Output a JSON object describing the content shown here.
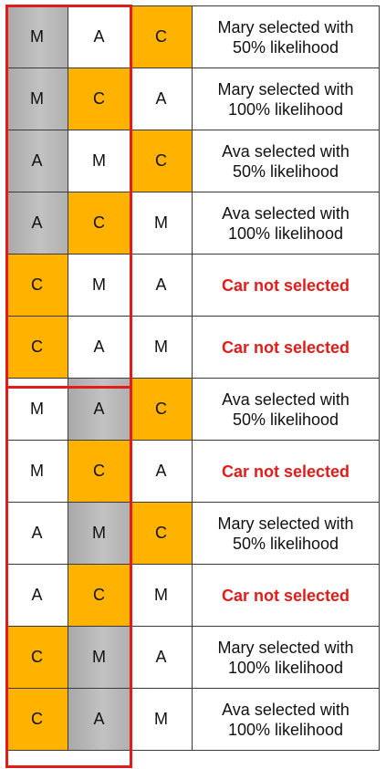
{
  "colors": {
    "grey": "#b3b3b3",
    "orange": "#ffb200",
    "white": "#ffffff",
    "highlight": "#e31b1b",
    "not_selected_text": "#e31b1b"
  },
  "rows": [
    {
      "cells": [
        {
          "t": "M",
          "c": "grey"
        },
        {
          "t": "A",
          "c": "white"
        },
        {
          "t": "C",
          "c": "orange"
        }
      ],
      "result": [
        "Mary selected with",
        "50% likelihood"
      ]
    },
    {
      "cells": [
        {
          "t": "M",
          "c": "grey"
        },
        {
          "t": "C",
          "c": "orange"
        },
        {
          "t": "A",
          "c": "white"
        }
      ],
      "result": [
        "Mary selected with",
        "100% likelihood"
      ]
    },
    {
      "cells": [
        {
          "t": "A",
          "c": "grey"
        },
        {
          "t": "M",
          "c": "white"
        },
        {
          "t": "C",
          "c": "orange"
        }
      ],
      "result": [
        "Ava selected with",
        "50% likelihood"
      ]
    },
    {
      "cells": [
        {
          "t": "A",
          "c": "grey"
        },
        {
          "t": "C",
          "c": "orange"
        },
        {
          "t": "M",
          "c": "white"
        }
      ],
      "result": [
        "Ava selected with",
        "100% likelihood"
      ]
    },
    {
      "cells": [
        {
          "t": "C",
          "c": "orange"
        },
        {
          "t": "M",
          "c": "white"
        },
        {
          "t": "A",
          "c": "white"
        }
      ],
      "result": [
        "Car not selected"
      ],
      "not_selected": true
    },
    {
      "cells": [
        {
          "t": "C",
          "c": "orange"
        },
        {
          "t": "A",
          "c": "white"
        },
        {
          "t": "M",
          "c": "white"
        }
      ],
      "result": [
        "Car not selected"
      ],
      "not_selected": true
    },
    {
      "cells": [
        {
          "t": "M",
          "c": "white"
        },
        {
          "t": "A",
          "c": "grey"
        },
        {
          "t": "C",
          "c": "orange"
        }
      ],
      "result": [
        "Ava selected with",
        "50% likelihood"
      ]
    },
    {
      "cells": [
        {
          "t": "M",
          "c": "white"
        },
        {
          "t": "C",
          "c": "orange"
        },
        {
          "t": "A",
          "c": "white"
        }
      ],
      "result": [
        "Car not selected"
      ],
      "not_selected": true
    },
    {
      "cells": [
        {
          "t": "A",
          "c": "white"
        },
        {
          "t": "M",
          "c": "grey"
        },
        {
          "t": "C",
          "c": "orange"
        }
      ],
      "result": [
        "Mary selected with",
        "50% likelihood"
      ]
    },
    {
      "cells": [
        {
          "t": "A",
          "c": "white"
        },
        {
          "t": "C",
          "c": "orange"
        },
        {
          "t": "M",
          "c": "white"
        }
      ],
      "result": [
        "Car not selected"
      ],
      "not_selected": true
    },
    {
      "cells": [
        {
          "t": "C",
          "c": "orange"
        },
        {
          "t": "M",
          "c": "grey"
        },
        {
          "t": "A",
          "c": "white"
        }
      ],
      "result": [
        "Mary selected with",
        "100% likelihood"
      ]
    },
    {
      "cells": [
        {
          "t": "C",
          "c": "orange"
        },
        {
          "t": "A",
          "c": "grey"
        },
        {
          "t": "M",
          "c": "white"
        }
      ],
      "result": [
        "Ava selected with",
        "100% likelihood"
      ]
    }
  ]
}
